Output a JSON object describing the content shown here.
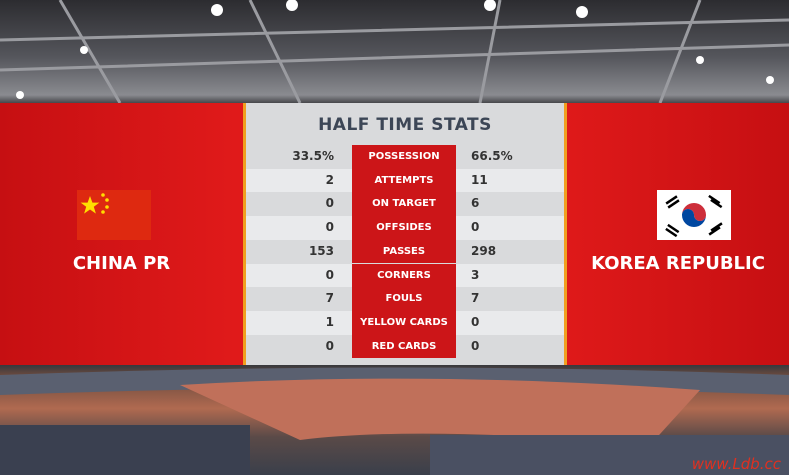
{
  "header": {
    "title": "HALF TIME STATS"
  },
  "teams": {
    "home": "CHINA PR",
    "away": "KOREA REPUBLIC"
  },
  "table": {
    "rows": [
      [
        "33.5%",
        "POSSESSION",
        "66.5%"
      ],
      [
        "2",
        "ATTEMPTS",
        "11"
      ],
      [
        "0",
        "ON TARGET",
        "6"
      ],
      [
        "0",
        "OFFSIDES",
        "0"
      ],
      [
        "153",
        "PASSES",
        "298"
      ],
      [
        "0",
        "CORNERS",
        "3"
      ],
      [
        "7",
        "FOULS",
        "7"
      ],
      [
        "1",
        "YELLOW CARDS",
        "0"
      ],
      [
        "0",
        "RED CARDS",
        "0"
      ]
    ]
  },
  "watermark": "www.Ldb.cc"
}
